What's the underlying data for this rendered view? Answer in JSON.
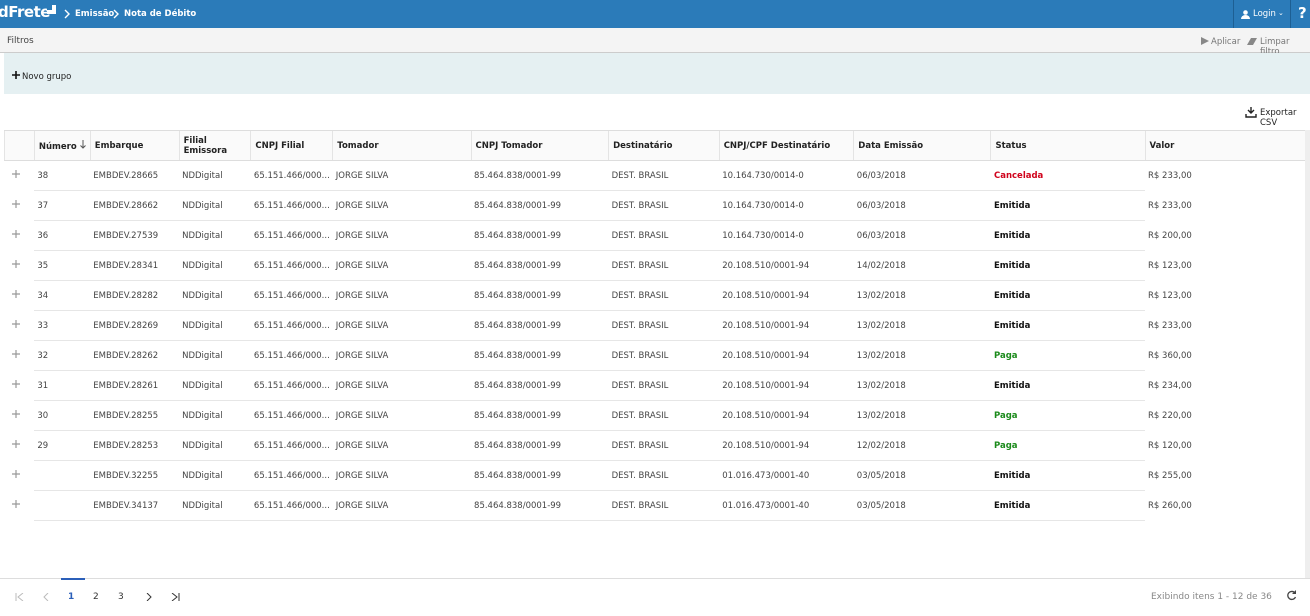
{
  "header": {
    "brand": "dFrete",
    "breadcrumb": [
      "Emissão",
      "Nota de Débito"
    ],
    "login": "Login",
    "help": "?"
  },
  "filters": {
    "title": "Filtros",
    "apply": "Aplicar",
    "clear": "Limpar filtro",
    "new_group": "Novo grupo"
  },
  "export": "Exportar CSV",
  "table": {
    "columns": [
      "Número",
      "Embarque",
      "Filial Emissora",
      "CNPJ Filial",
      "Tomador",
      "CNPJ Tomador",
      "Destinatário",
      "CNPJ/CPF Destinatário",
      "Data Emissão",
      "Status",
      "Valor"
    ],
    "rows": [
      [
        38,
        "EMBDEV.28665",
        "NDDigital",
        "65.151.466/000...",
        "JORGE SILVA",
        "85.464.838/0001-99",
        "DEST. BRASIL",
        "10.164.730/0014-0",
        "06/03/2018",
        "Cancelada",
        "R$ 233,00"
      ],
      [
        37,
        "EMBDEV.28662",
        "NDDigital",
        "65.151.466/000...",
        "JORGE SILVA",
        "85.464.838/0001-99",
        "DEST. BRASIL",
        "10.164.730/0014-0",
        "06/03/2018",
        "Emitida",
        "R$ 233,00"
      ],
      [
        36,
        "EMBDEV.27539",
        "NDDigital",
        "65.151.466/000...",
        "JORGE SILVA",
        "85.464.838/0001-99",
        "DEST. BRASIL",
        "10.164.730/0014-0",
        "06/03/2018",
        "Emitida",
        "R$ 200,00"
      ],
      [
        35,
        "EMBDEV.28341",
        "NDDigital",
        "65.151.466/000...",
        "JORGE SILVA",
        "85.464.838/0001-99",
        "DEST. BRASIL",
        "20.108.510/0001-94",
        "14/02/2018",
        "Emitida",
        "R$ 123,00"
      ],
      [
        34,
        "EMBDEV.28282",
        "NDDigital",
        "65.151.466/000...",
        "JORGE SILVA",
        "85.464.838/0001-99",
        "DEST. BRASIL",
        "20.108.510/0001-94",
        "13/02/2018",
        "Emitida",
        "R$ 123,00"
      ],
      [
        33,
        "EMBDEV.28269",
        "NDDigital",
        "65.151.466/000...",
        "JORGE SILVA",
        "85.464.838/0001-99",
        "DEST. BRASIL",
        "20.108.510/0001-94",
        "13/02/2018",
        "Emitida",
        "R$ 233,00"
      ],
      [
        32,
        "EMBDEV.28262",
        "NDDigital",
        "65.151.466/000...",
        "JORGE SILVA",
        "85.464.838/0001-99",
        "DEST. BRASIL",
        "20.108.510/0001-94",
        "13/02/2018",
        "Paga",
        "R$ 360,00"
      ],
      [
        31,
        "EMBDEV.28261",
        "NDDigital",
        "65.151.466/000...",
        "JORGE SILVA",
        "85.464.838/0001-99",
        "DEST. BRASIL",
        "20.108.510/0001-94",
        "13/02/2018",
        "Emitida",
        "R$ 234,00"
      ],
      [
        30,
        "EMBDEV.28255",
        "NDDigital",
        "65.151.466/000...",
        "JORGE SILVA",
        "85.464.838/0001-99",
        "DEST. BRASIL",
        "20.108.510/0001-94",
        "13/02/2018",
        "Paga",
        "R$ 220,00"
      ],
      [
        29,
        "EMBDEV.28253",
        "NDDigital",
        "65.151.466/000...",
        "JORGE SILVA",
        "85.464.838/0001-99",
        "DEST. BRASIL",
        "20.108.510/0001-94",
        "12/02/2018",
        "Paga",
        "R$ 120,00"
      ],
      [
        null,
        "EMBDEV.32255",
        "NDDigital",
        "65.151.466/000...",
        "JORGE SILVA",
        "85.464.838/0001-99",
        "DEST. BRASIL",
        "01.016.473/0001-40",
        "03/05/2018",
        "Emitida",
        "R$ 255,00"
      ],
      [
        null,
        "EMBDEV.34137",
        "NDDigital",
        "65.151.466/000...",
        "JORGE SILVA",
        "85.464.838/0001-99",
        "DEST. BRASIL",
        "01.016.473/0001-40",
        "03/05/2018",
        "Emitida",
        "R$ 260,00"
      ]
    ],
    "status_colors": [
      "#d0021b",
      "#111",
      "#111",
      "#111",
      "#111",
      "#111",
      "#1a8a1a",
      "#111",
      "#1a8a1a",
      "#1a8a1a",
      "#111",
      "#111"
    ]
  },
  "pagination": {
    "pages": [
      1,
      2,
      3
    ],
    "current": 1,
    "summary": "Exibindo itens 1 - 12 de 36"
  }
}
